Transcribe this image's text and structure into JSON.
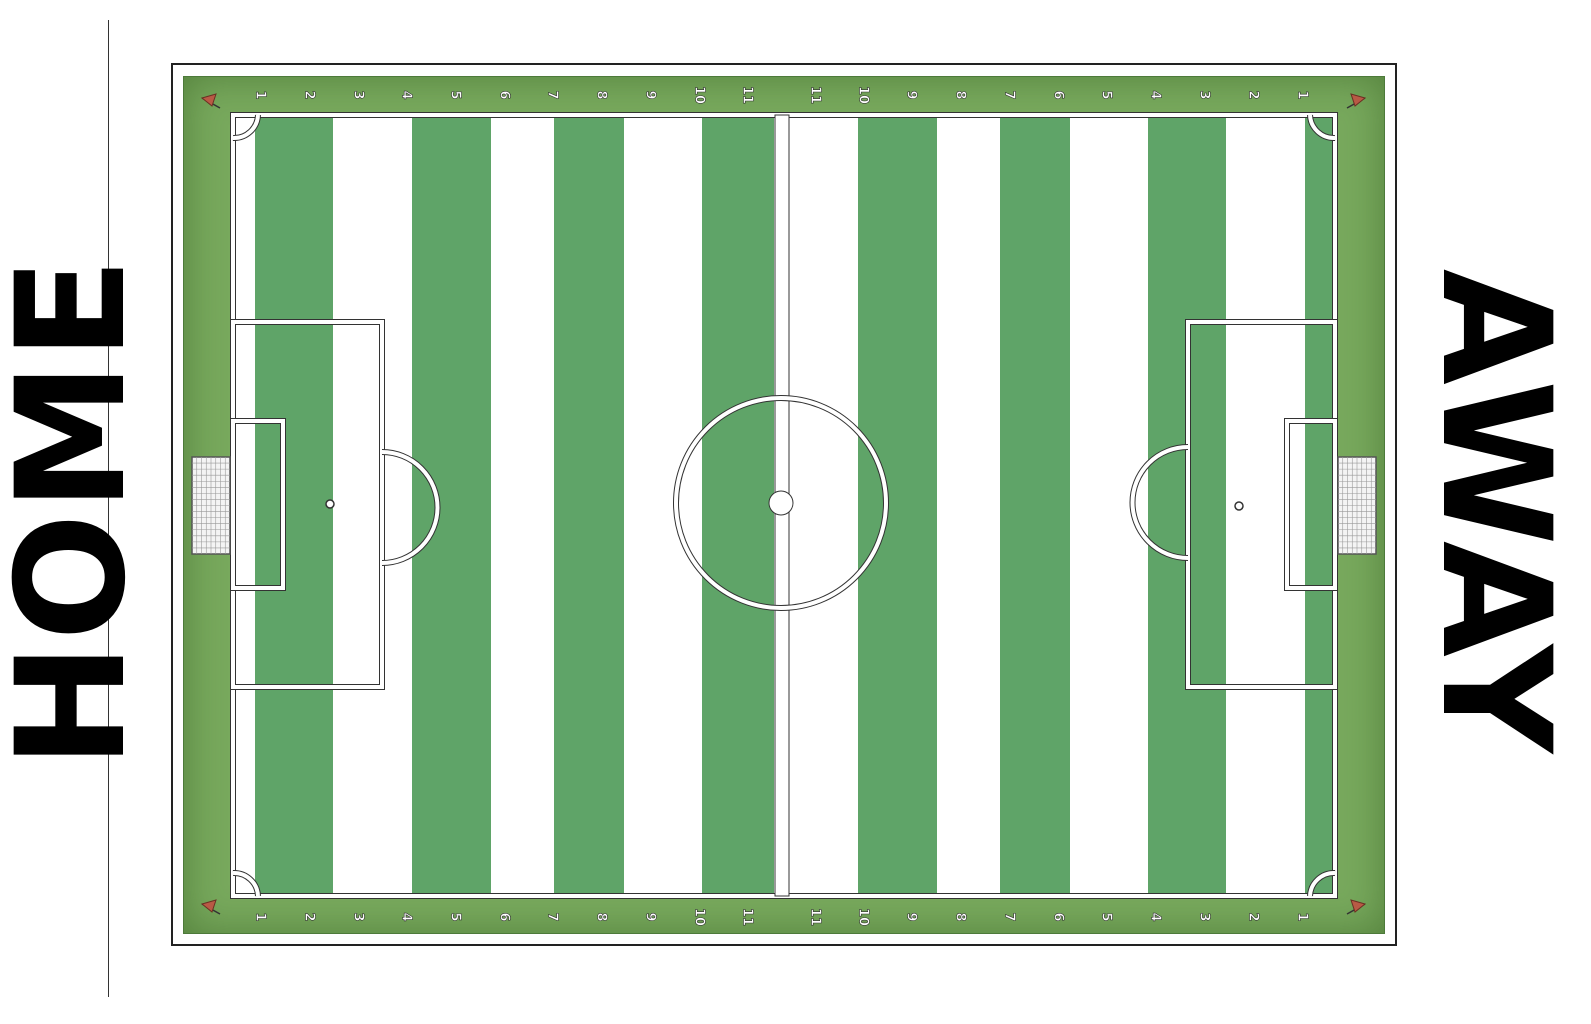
{
  "labels": {
    "home": "HOME",
    "away": "AWAY"
  },
  "colors": {
    "border_green": "#78a95d",
    "stripe_green": "#5fa468",
    "stripe_white": "#ffffff",
    "line": "#ffffff",
    "line_edge": "#333333",
    "flag": "#b85a45"
  },
  "icons": {
    "corner_flag": "corner-flag-icon",
    "goal": "goal-net-icon"
  },
  "columns": {
    "home": [
      "1",
      "2",
      "3",
      "4",
      "5",
      "6",
      "7",
      "8",
      "9",
      "10",
      "11"
    ],
    "away": [
      "11",
      "10",
      "9",
      "8",
      "7",
      "6",
      "5",
      "4",
      "3",
      "2",
      "1"
    ]
  }
}
